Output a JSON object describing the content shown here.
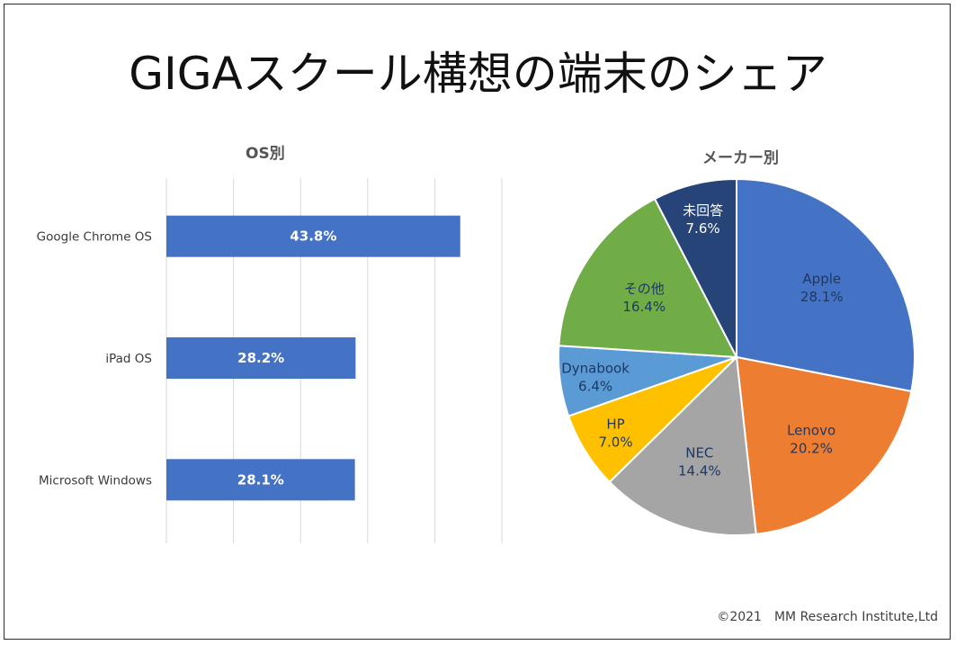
{
  "title": "GIGAスクール構想の端末のシェア",
  "copyright": "©2021　MM Research Institute,Ltd",
  "chart_data": [
    {
      "type": "bar",
      "orientation": "horizontal",
      "title": "OS別",
      "categories": [
        "Google Chrome OS",
        "iPad OS",
        "Microsoft Windows"
      ],
      "values": [
        43.8,
        28.2,
        28.1
      ],
      "value_labels": [
        "43.8%",
        "28.2%",
        "28.1%"
      ],
      "xlim": [
        0,
        50
      ],
      "grid": true,
      "color": "#4472C4"
    },
    {
      "type": "pie",
      "title": "メーカー別",
      "labels": [
        "Apple",
        "Lenovo",
        "NEC",
        "HP",
        "Dynabook",
        "その他",
        "未回答"
      ],
      "values": [
        28.1,
        20.2,
        14.4,
        7.0,
        6.4,
        16.4,
        7.6
      ],
      "value_labels": [
        "28.1%",
        "20.2%",
        "14.4%",
        "7.0%",
        "6.4%",
        "16.4%",
        "7.6%"
      ],
      "colors": [
        "#4472C4",
        "#ED7D31",
        "#A5A5A5",
        "#FFC000",
        "#5B9BD5",
        "#70AD47",
        "#264478"
      ],
      "label_colors": [
        "#1F3864",
        "#1F3864",
        "#1F3864",
        "#1F3864",
        "#1F3864",
        "#1F3864",
        "#ffffff"
      ]
    }
  ]
}
